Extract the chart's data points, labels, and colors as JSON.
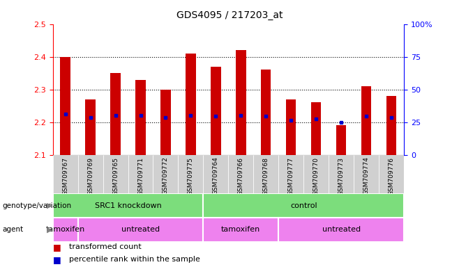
{
  "title": "GDS4095 / 217203_at",
  "samples": [
    "GSM709767",
    "GSM709769",
    "GSM709765",
    "GSM709771",
    "GSM709772",
    "GSM709775",
    "GSM709764",
    "GSM709766",
    "GSM709768",
    "GSM709777",
    "GSM709770",
    "GSM709773",
    "GSM709774",
    "GSM709776"
  ],
  "bar_values": [
    2.4,
    2.27,
    2.35,
    2.33,
    2.3,
    2.41,
    2.37,
    2.42,
    2.36,
    2.27,
    2.26,
    2.19,
    2.31,
    2.28
  ],
  "percentile_values": [
    2.225,
    2.215,
    2.22,
    2.22,
    2.215,
    2.22,
    2.218,
    2.22,
    2.218,
    2.205,
    2.21,
    2.2,
    2.218,
    2.215
  ],
  "ylim": [
    2.1,
    2.5
  ],
  "y2lim": [
    0,
    100
  ],
  "yticks": [
    2.1,
    2.2,
    2.3,
    2.4,
    2.5
  ],
  "y2ticks": [
    0,
    25,
    50,
    75,
    100
  ],
  "bar_color": "#cc0000",
  "percentile_color": "#0000cc",
  "bar_bottom": 2.1,
  "xticklabel_bg": "#d0d0d0",
  "genotype_color": "#7cdd7c",
  "tamoxifen_color": "#ee82ee",
  "untreated_color": "#ee82ee",
  "tamoxifen_bg": "#ee82ee",
  "untreated_bg": "#cc44cc",
  "legend_items": [
    {
      "label": "transformed count",
      "color": "#cc0000"
    },
    {
      "label": "percentile rank within the sample",
      "color": "#0000cc"
    }
  ],
  "genotype_label_fontsize": 8,
  "agent_label_fontsize": 8,
  "row_label_fontsize": 7.5
}
